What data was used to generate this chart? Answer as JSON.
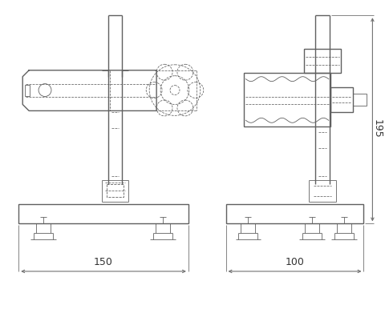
{
  "bg": "#ffffff",
  "lc": "#606060",
  "dc": "#707070",
  "LW": 1.0,
  "LWS": 0.6,
  "LWD": 0.55
}
